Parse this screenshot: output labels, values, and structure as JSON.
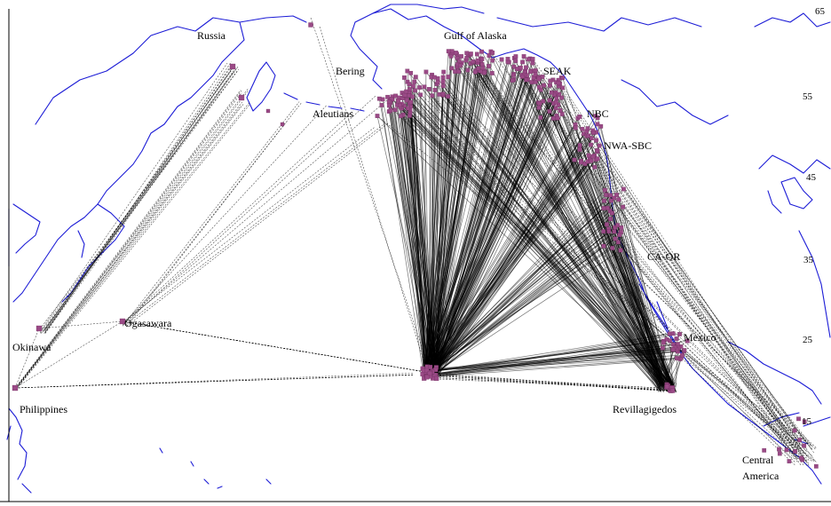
{
  "map": {
    "region_labels": {
      "russia": "Russia",
      "bering": "Bering",
      "aleutians": "Aleutians",
      "gulf_of_alaska": "Gulf of Alaska",
      "seak": "SEAK",
      "nbc": "NBC",
      "nwa_sbc": "NWA-SBC",
      "ca_or": "CA-OR",
      "mexico": "Mexico",
      "okinawa": "Okinawa",
      "ogasawara": "Ogasawara",
      "philippines": "Philippines",
      "revillagigedos": "Revillagigedos",
      "central_america_1": "Central",
      "central_america_2": "America"
    },
    "latitude_labels": [
      "65",
      "55",
      "45",
      "35",
      "25",
      "15"
    ],
    "colors": {
      "coastline": "#1c1cd6",
      "routes": "#000000",
      "sighting_markers": "#9a4a86",
      "background": "#ffffff"
    }
  }
}
